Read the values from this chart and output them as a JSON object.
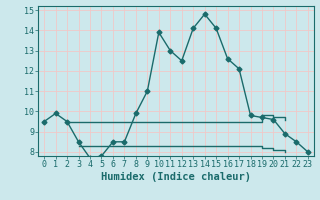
{
  "xlabel": "Humidex (Indice chaleur)",
  "background_color": "#cce8ec",
  "grid_color": "#f0c8c8",
  "line_color": "#1a6b6b",
  "xlim": [
    -0.5,
    23.5
  ],
  "ylim": [
    7.8,
    15.2
  ],
  "yticks": [
    8,
    9,
    10,
    11,
    12,
    13,
    14,
    15
  ],
  "xticks": [
    0,
    1,
    2,
    3,
    4,
    5,
    6,
    7,
    8,
    9,
    10,
    11,
    12,
    13,
    14,
    15,
    16,
    17,
    18,
    19,
    20,
    21,
    22,
    23
  ],
  "main_x": [
    0,
    1,
    2,
    3,
    4,
    5,
    6,
    7,
    8,
    9,
    10,
    11,
    12,
    13,
    14,
    15,
    16,
    17,
    18,
    19,
    20,
    21,
    22,
    23
  ],
  "main_y": [
    9.5,
    9.9,
    9.5,
    8.5,
    7.7,
    7.8,
    8.5,
    8.5,
    9.9,
    11.0,
    13.9,
    13.0,
    12.5,
    14.1,
    14.8,
    14.1,
    12.6,
    12.1,
    9.8,
    9.7,
    9.6,
    8.9,
    8.5,
    8.0
  ],
  "upper_band_x": [
    2,
    3,
    6,
    7,
    8,
    9,
    10,
    11,
    12,
    13,
    14,
    15,
    16,
    17,
    18,
    19,
    20,
    21
  ],
  "upper_band_y": [
    9.5,
    9.5,
    9.5,
    9.5,
    9.5,
    9.5,
    9.5,
    9.5,
    9.5,
    9.5,
    9.5,
    9.5,
    9.5,
    9.5,
    9.5,
    9.8,
    9.7,
    9.6
  ],
  "lower_band_x": [
    3,
    4,
    5,
    6,
    7,
    8,
    9,
    10,
    11,
    12,
    13,
    14,
    15,
    16,
    17,
    18,
    19,
    20,
    21
  ],
  "lower_band_y": [
    8.3,
    8.3,
    8.3,
    8.3,
    8.3,
    8.3,
    8.3,
    8.3,
    8.3,
    8.3,
    8.3,
    8.3,
    8.3,
    8.3,
    8.3,
    8.3,
    8.2,
    8.1,
    8.0
  ],
  "marker": "D",
  "marker_size": 2.5,
  "font_color": "#1a6b6b",
  "tick_fontsize": 6,
  "label_fontsize": 7.5
}
